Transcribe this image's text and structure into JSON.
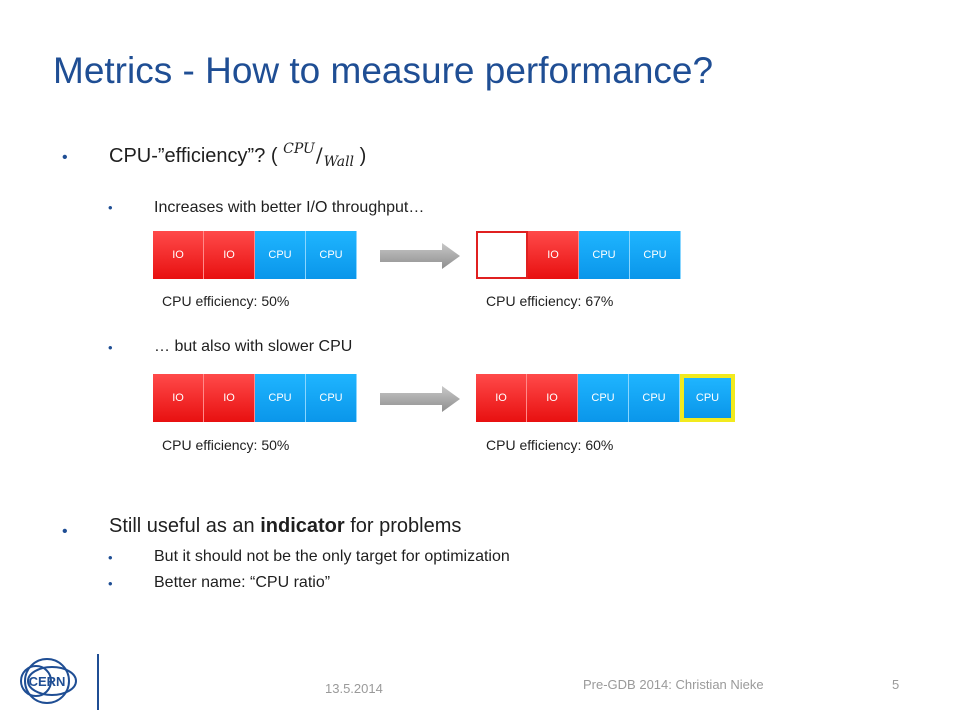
{
  "slide": {
    "title": "Metrics - How to measure performance?",
    "bullets": {
      "b1_text": "CPU-”efficiency”? ( ",
      "b1_num": "CPU",
      "b1_den": "Wall",
      "b1_close": " )",
      "b1_sub1": "Increases with better I/O throughput…",
      "b1_sub2": "… but also with slower CPU",
      "b2_pre": "Still useful as an ",
      "b2_bold": "indicator",
      "b2_post": " for problems",
      "b2_sub1": "But it should not be the only target for optimization",
      "b2_sub2": "Better name: “CPU ratio”"
    },
    "bullet_glyph": "•"
  },
  "diagram": {
    "row1": {
      "left_blocks": [
        "IO",
        "IO",
        "CPU",
        "CPU"
      ],
      "right_blocks": [
        "",
        "IO",
        "CPU",
        "CPU"
      ],
      "left_eff": "CPU efficiency: 50%",
      "right_eff": "CPU efficiency: 67%"
    },
    "row2": {
      "left_blocks": [
        "IO",
        "IO",
        "CPU",
        "CPU"
      ],
      "right_blocks": [
        "IO",
        "IO",
        "CPU",
        "CPU",
        "CPU"
      ],
      "left_eff": "CPU efficiency: 50%",
      "right_eff": "CPU efficiency: 60%"
    },
    "colors": {
      "io": "#e81010",
      "cpu": "#0a96ea",
      "highlight": "#f2ea1e"
    }
  },
  "footer": {
    "date": "13.5.2014",
    "event": "Pre-GDB 2014: Christian Nieke",
    "page": "5",
    "logo_text": "CERN"
  }
}
